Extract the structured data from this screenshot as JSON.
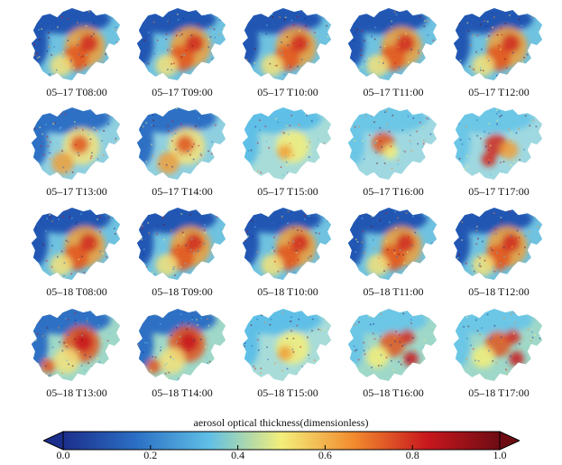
{
  "figure": {
    "panels": [
      {
        "label": "05–17 T08:00",
        "pattern": "dense"
      },
      {
        "label": "05–17 T09:00",
        "pattern": "dense"
      },
      {
        "label": "05–17 T10:00",
        "pattern": "dense"
      },
      {
        "label": "05–17 T11:00",
        "pattern": "dense"
      },
      {
        "label": "05–17 T12:00",
        "pattern": "dense"
      },
      {
        "label": "05–17 T13:00",
        "pattern": "mid"
      },
      {
        "label": "05–17 T14:00",
        "pattern": "mid"
      },
      {
        "label": "05–17 T15:00",
        "pattern": "light"
      },
      {
        "label": "05–17 T16:00",
        "pattern": "cyan"
      },
      {
        "label": "05–17 T17:00",
        "pattern": "cyan-red"
      },
      {
        "label": "05–18 T08:00",
        "pattern": "dense"
      },
      {
        "label": "05–18 T09:00",
        "pattern": "dense"
      },
      {
        "label": "05–18 T10:00",
        "pattern": "dense"
      },
      {
        "label": "05–18 T11:00",
        "pattern": "dense"
      },
      {
        "label": "05–18 T12:00",
        "pattern": "dense"
      },
      {
        "label": "05–18 T13:00",
        "pattern": "hot"
      },
      {
        "label": "05–18 T14:00",
        "pattern": "hot"
      },
      {
        "label": "05–18 T15:00",
        "pattern": "light"
      },
      {
        "label": "05–18 T16:00",
        "pattern": "noisy"
      },
      {
        "label": "05–18 T17:00",
        "pattern": "noisy"
      }
    ],
    "colorbar": {
      "title": "aerosol optical thickness(dimensionless)",
      "min": 0.0,
      "max": 1.0,
      "ticks": [
        "0.0",
        "0.2",
        "0.4",
        "0.6",
        "0.8",
        "1.0"
      ],
      "colors": [
        "#1c2f8c",
        "#2b6fc4",
        "#5fbfe6",
        "#f3ee7a",
        "#f28a2e",
        "#c8171d",
        "#6e0c14"
      ]
    }
  }
}
